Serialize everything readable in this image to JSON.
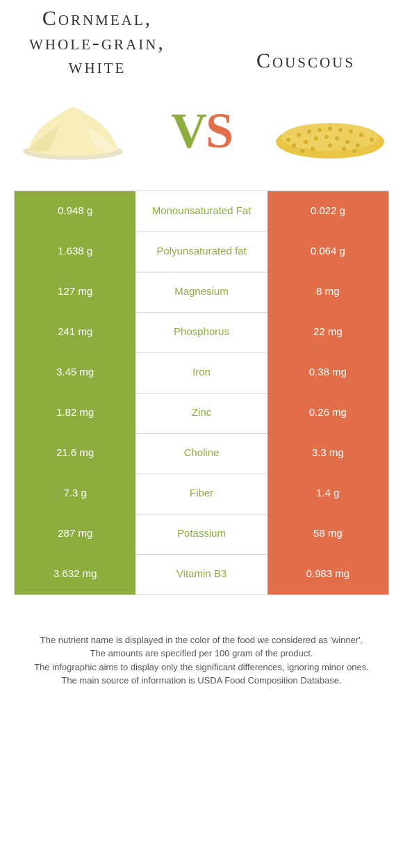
{
  "header": {
    "left_title": "Cornmeal, whole-grain, white",
    "right_title": "Couscous"
  },
  "vs": {
    "v": "V",
    "s": "S"
  },
  "colors": {
    "green": "#8dae3e",
    "orange": "#e36f4a",
    "border": "#d8d8d8",
    "cornmeal_fill": "#f6edb9",
    "cornmeal_shadow": "#e8dca0",
    "couscous_fill": "#e8c545",
    "couscous_dark": "#d4ad2a"
  },
  "rows": [
    {
      "left": "0.948 g",
      "mid": "Monounsaturated Fat",
      "right": "0.022 g",
      "winner": "left"
    },
    {
      "left": "1.638 g",
      "mid": "Polyunsaturated fat",
      "right": "0.064 g",
      "winner": "left"
    },
    {
      "left": "127 mg",
      "mid": "Magnesium",
      "right": "8 mg",
      "winner": "left"
    },
    {
      "left": "241 mg",
      "mid": "Phosphorus",
      "right": "22 mg",
      "winner": "left"
    },
    {
      "left": "3.45 mg",
      "mid": "Iron",
      "right": "0.38 mg",
      "winner": "left"
    },
    {
      "left": "1.82 mg",
      "mid": "Zinc",
      "right": "0.26 mg",
      "winner": "left"
    },
    {
      "left": "21.6 mg",
      "mid": "Choline",
      "right": "3.3 mg",
      "winner": "left"
    },
    {
      "left": "7.3 g",
      "mid": "Fiber",
      "right": "1.4 g",
      "winner": "left"
    },
    {
      "left": "287 mg",
      "mid": "Potassium",
      "right": "58 mg",
      "winner": "left"
    },
    {
      "left": "3.632 mg",
      "mid": "Vitamin B3",
      "right": "0.983 mg",
      "winner": "left"
    }
  ],
  "footer": {
    "line1": "The nutrient name is displayed in the color of the food we considered as 'winner'.",
    "line2": "The amounts are specified per 100 gram of the product.",
    "line3": "The infographic aims to display only the significant differences, ignoring minor ones.",
    "line4": "The main source of information is USDA Food Composition Database."
  }
}
